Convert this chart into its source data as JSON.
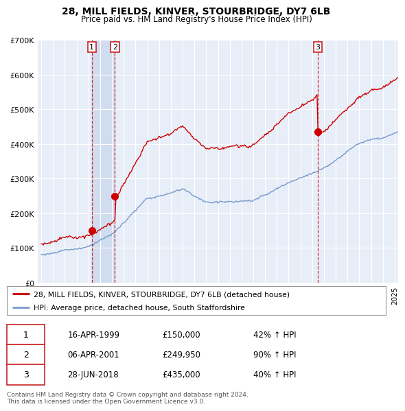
{
  "title": "28, MILL FIELDS, KINVER, STOURBRIDGE, DY7 6LB",
  "subtitle": "Price paid vs. HM Land Registry's House Price Index (HPI)",
  "ylim": [
    0,
    700000
  ],
  "yticks": [
    0,
    100000,
    200000,
    300000,
    400000,
    500000,
    600000,
    700000
  ],
  "ytick_labels": [
    "£0",
    "£100K",
    "£200K",
    "£300K",
    "£400K",
    "£500K",
    "£600K",
    "£700K"
  ],
  "background_color": "#ffffff",
  "plot_bg_color": "#e8eef8",
  "grid_color": "#ffffff",
  "sale_color": "#cc0000",
  "hpi_color": "#7799cc",
  "shade_color": "#d0dcf0",
  "sale_label": "28, MILL FIELDS, KINVER, STOURBRIDGE, DY7 6LB (detached house)",
  "hpi_label": "HPI: Average price, detached house, South Staffordshire",
  "t1": 1999.292,
  "t2": 2001.25,
  "t3": 2018.49,
  "p1": 150000,
  "p2": 249950,
  "p3": 435000,
  "table_rows": [
    [
      "1",
      "16-APR-1999",
      "£150,000",
      "42% ↑ HPI"
    ],
    [
      "2",
      "06-APR-2001",
      "£249,950",
      "90% ↑ HPI"
    ],
    [
      "3",
      "28-JUN-2018",
      "£435,000",
      "40% ↑ HPI"
    ]
  ],
  "footnote": "Contains HM Land Registry data © Crown copyright and database right 2024.\nThis data is licensed under the Open Government Licence v3.0."
}
